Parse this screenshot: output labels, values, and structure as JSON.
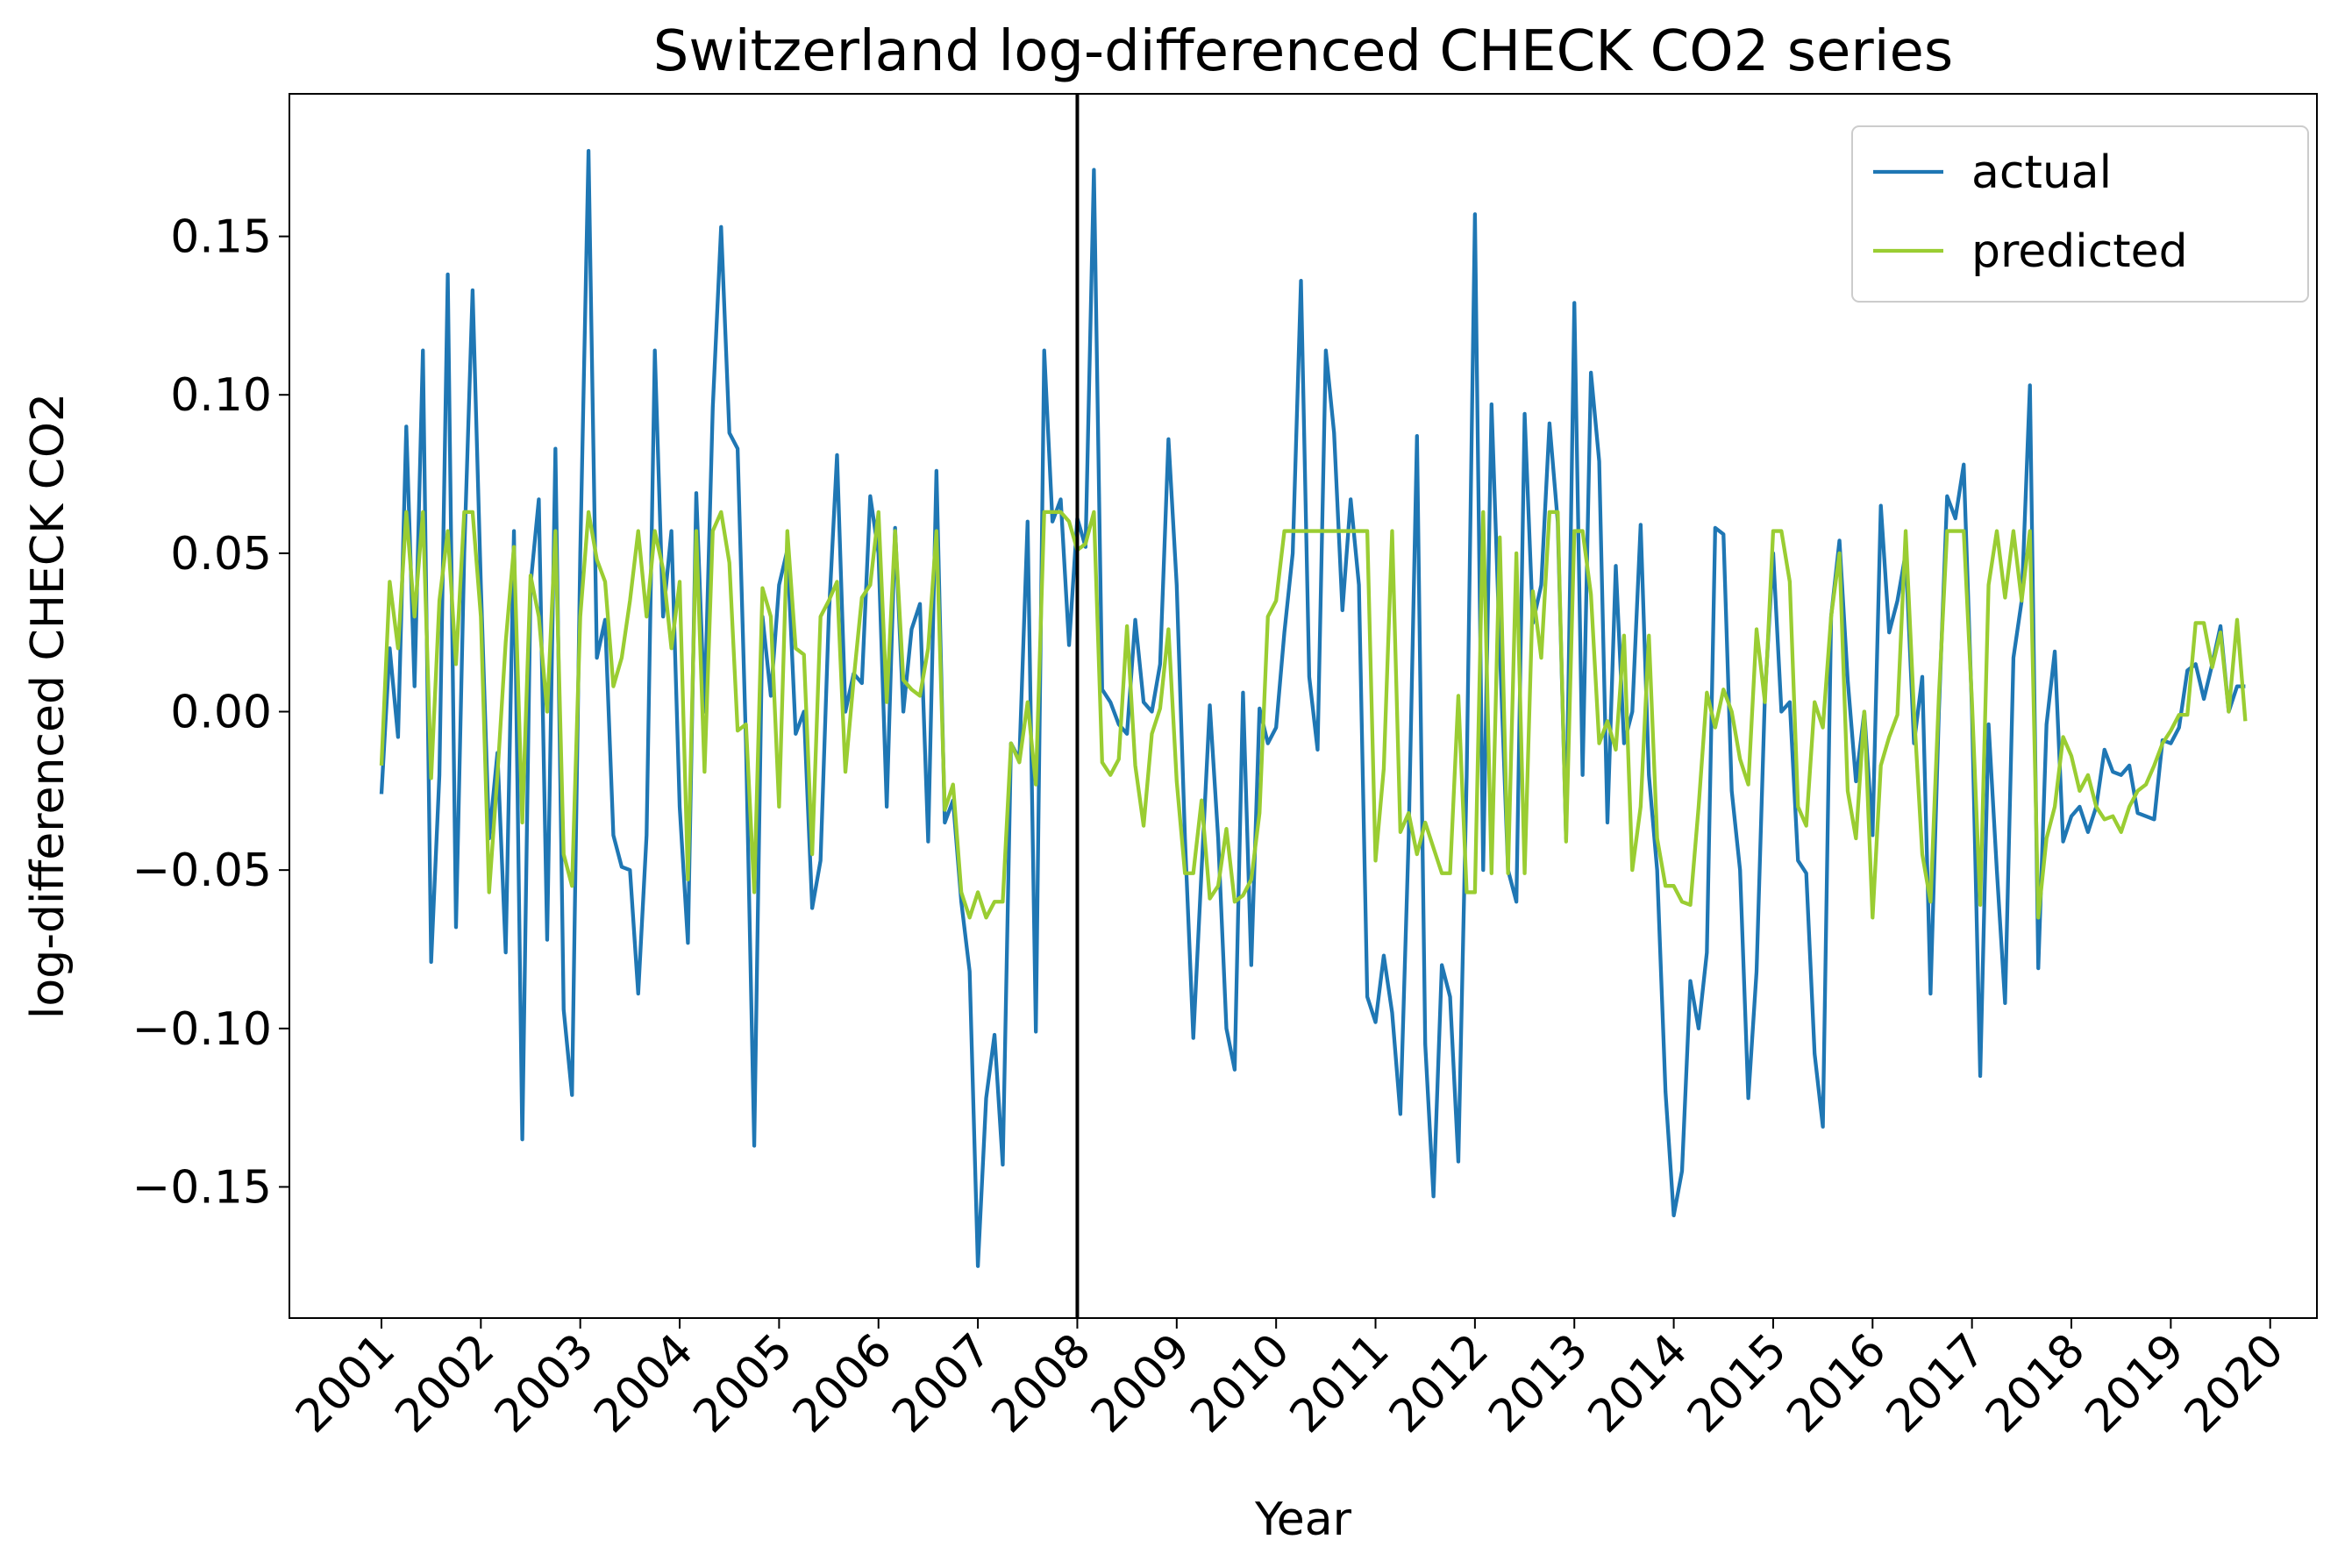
{
  "chart_data": {
    "type": "line",
    "title": "Switzerland log-differenced CHECK CO2 series",
    "xlabel": "Year",
    "ylabel": "log-differenced CHECK CO2",
    "x": [
      2001,
      2001.083,
      2001.167,
      2001.25,
      2001.333,
      2001.417,
      2001.5,
      2001.583,
      2001.667,
      2001.75,
      2001.833,
      2001.917,
      2002,
      2002.083,
      2002.167,
      2002.25,
      2002.333,
      2002.417,
      2002.5,
      2002.583,
      2002.667,
      2002.75,
      2002.833,
      2002.917,
      2003,
      2003.083,
      2003.167,
      2003.25,
      2003.333,
      2003.417,
      2003.5,
      2003.583,
      2003.667,
      2003.75,
      2003.833,
      2003.917,
      2004,
      2004.083,
      2004.167,
      2004.25,
      2004.333,
      2004.417,
      2004.5,
      2004.583,
      2004.667,
      2004.75,
      2004.833,
      2004.917,
      2005,
      2005.083,
      2005.167,
      2005.25,
      2005.333,
      2005.417,
      2005.5,
      2005.583,
      2005.667,
      2005.75,
      2005.833,
      2005.917,
      2006,
      2006.083,
      2006.167,
      2006.25,
      2006.333,
      2006.417,
      2006.5,
      2006.583,
      2006.667,
      2006.75,
      2006.833,
      2006.917,
      2007,
      2007.083,
      2007.167,
      2007.25,
      2007.333,
      2007.417,
      2007.5,
      2007.583,
      2007.667,
      2007.75,
      2007.833,
      2007.917,
      2008,
      2008.083,
      2008.167,
      2008.25,
      2008.333,
      2008.417,
      2008.5,
      2008.583,
      2008.667,
      2008.75,
      2008.833,
      2008.917,
      2009,
      2009.083,
      2009.167,
      2009.25,
      2009.333,
      2009.417,
      2009.5,
      2009.583,
      2009.667,
      2009.75,
      2009.833,
      2009.917,
      2010,
      2010.083,
      2010.167,
      2010.25,
      2010.333,
      2010.417,
      2010.5,
      2010.583,
      2010.667,
      2010.75,
      2010.833,
      2010.917,
      2011,
      2011.083,
      2011.167,
      2011.25,
      2011.333,
      2011.417,
      2011.5,
      2011.583,
      2011.667,
      2011.75,
      2011.833,
      2011.917,
      2012,
      2012.083,
      2012.167,
      2012.25,
      2012.333,
      2012.417,
      2012.5,
      2012.583,
      2012.667,
      2012.75,
      2012.833,
      2012.917,
      2013,
      2013.083,
      2013.167,
      2013.25,
      2013.333,
      2013.417,
      2013.5,
      2013.583,
      2013.667,
      2013.75,
      2013.833,
      2013.917,
      2014,
      2014.083,
      2014.167,
      2014.25,
      2014.333,
      2014.417,
      2014.5,
      2014.583,
      2014.667,
      2014.75,
      2014.833,
      2014.917,
      2015,
      2015.083,
      2015.167,
      2015.25,
      2015.333,
      2015.417,
      2015.5,
      2015.583,
      2015.667,
      2015.75,
      2015.833,
      2015.917,
      2016,
      2016.083,
      2016.167,
      2016.25,
      2016.333,
      2016.417,
      2016.5,
      2016.583,
      2016.667,
      2016.75,
      2016.833,
      2016.917,
      2017,
      2017.083,
      2017.167,
      2017.25,
      2017.333,
      2017.417,
      2017.5,
      2017.583,
      2017.667,
      2017.75,
      2017.833,
      2017.917,
      2018,
      2018.083,
      2018.167,
      2018.25,
      2018.333,
      2018.417,
      2018.5,
      2018.583,
      2018.667,
      2018.75,
      2018.833,
      2018.917,
      2019,
      2019.083,
      2019.167,
      2019.25,
      2019.333,
      2019.417,
      2019.5,
      2019.583,
      2019.667,
      2019.75
    ],
    "series": [
      {
        "name": "actual",
        "color": "#1f77b4",
        "values": [
          -0.026,
          0.02,
          -0.008,
          0.09,
          0.008,
          0.114,
          -0.079,
          -0.02,
          0.138,
          -0.068,
          0.05,
          0.133,
          0.04,
          -0.04,
          -0.013,
          -0.076,
          0.057,
          -0.135,
          0.04,
          0.067,
          -0.072,
          0.083,
          -0.094,
          -0.121,
          0.05,
          0.177,
          0.017,
          0.029,
          -0.039,
          -0.049,
          -0.05,
          -0.089,
          -0.039,
          0.114,
          0.03,
          0.057,
          -0.03,
          -0.073,
          0.069,
          0.0,
          0.096,
          0.153,
          0.088,
          0.083,
          -0.01,
          -0.137,
          0.03,
          0.005,
          0.04,
          0.051,
          -0.007,
          0.0,
          -0.062,
          -0.047,
          0.03,
          0.081,
          0.0,
          0.012,
          0.009,
          0.068,
          0.05,
          -0.03,
          0.058,
          0.0,
          0.026,
          0.034,
          -0.041,
          0.076,
          -0.035,
          -0.028,
          -0.06,
          -0.082,
          -0.175,
          -0.122,
          -0.102,
          -0.143,
          -0.01,
          -0.015,
          0.06,
          -0.101,
          0.114,
          0.06,
          0.067,
          0.021,
          0.061,
          0.052,
          0.171,
          0.007,
          0.003,
          -0.004,
          -0.007,
          0.029,
          0.003,
          0.0,
          0.015,
          0.086,
          0.04,
          -0.04,
          -0.103,
          -0.05,
          0.002,
          -0.04,
          -0.1,
          -0.113,
          0.006,
          -0.08,
          0.001,
          -0.01,
          -0.005,
          0.025,
          0.05,
          0.136,
          0.011,
          -0.012,
          0.114,
          0.088,
          0.032,
          0.067,
          0.04,
          -0.09,
          -0.098,
          -0.077,
          -0.095,
          -0.127,
          -0.04,
          0.087,
          -0.105,
          -0.153,
          -0.08,
          -0.09,
          -0.142,
          -0.02,
          0.157,
          -0.05,
          0.097,
          0.02,
          -0.05,
          -0.06,
          0.094,
          0.028,
          0.04,
          0.091,
          0.06,
          -0.04,
          0.129,
          -0.02,
          0.107,
          0.079,
          -0.035,
          0.046,
          -0.01,
          0.0,
          0.059,
          -0.02,
          -0.05,
          -0.12,
          -0.159,
          -0.145,
          -0.085,
          -0.1,
          -0.076,
          0.058,
          0.056,
          -0.025,
          -0.05,
          -0.122,
          -0.082,
          0.005,
          0.05,
          0.0,
          0.003,
          -0.047,
          -0.051,
          -0.108,
          -0.131,
          0.03,
          0.054,
          0.01,
          -0.022,
          0.0,
          -0.039,
          0.065,
          0.025,
          0.035,
          0.05,
          -0.01,
          0.011,
          -0.089,
          0.0,
          0.068,
          0.061,
          0.078,
          0.0,
          -0.115,
          -0.004,
          -0.05,
          -0.092,
          0.017,
          0.035,
          0.103,
          -0.081,
          -0.004,
          0.019,
          -0.041,
          -0.033,
          -0.03,
          -0.038,
          -0.03,
          -0.012,
          -0.019,
          -0.02,
          -0.017,
          -0.032,
          -0.033,
          -0.034,
          -0.009,
          -0.01,
          -0.005,
          0.013,
          0.015,
          0.004,
          0.015,
          0.027,
          0.0,
          0.008,
          0.008
        ]
      },
      {
        "name": "predicted",
        "color": "#9acd32",
        "values": [
          -0.017,
          0.041,
          0.02,
          0.063,
          0.03,
          0.063,
          -0.021,
          0.035,
          0.057,
          0.015,
          0.063,
          0.063,
          0.03,
          -0.057,
          -0.02,
          0.022,
          0.052,
          -0.035,
          0.043,
          0.03,
          0.0,
          0.057,
          -0.045,
          -0.055,
          0.03,
          0.063,
          0.048,
          0.041,
          0.008,
          0.017,
          0.035,
          0.057,
          0.03,
          0.057,
          0.045,
          0.02,
          0.041,
          -0.053,
          0.057,
          -0.019,
          0.057,
          0.063,
          0.047,
          -0.006,
          -0.004,
          -0.057,
          0.039,
          0.03,
          -0.03,
          0.057,
          0.02,
          0.018,
          -0.045,
          0.03,
          0.035,
          0.041,
          -0.019,
          0.01,
          0.036,
          0.04,
          0.063,
          0.003,
          0.057,
          0.01,
          0.007,
          0.005,
          0.02,
          0.057,
          -0.031,
          -0.023,
          -0.057,
          -0.065,
          -0.057,
          -0.065,
          -0.06,
          -0.06,
          -0.01,
          -0.016,
          0.003,
          -0.023,
          0.063,
          0.063,
          0.063,
          0.06,
          0.051,
          0.053,
          0.063,
          -0.016,
          -0.02,
          -0.015,
          0.027,
          -0.017,
          -0.036,
          -0.007,
          0.001,
          0.026,
          -0.022,
          -0.051,
          -0.051,
          -0.028,
          -0.059,
          -0.055,
          -0.037,
          -0.06,
          -0.058,
          -0.053,
          -0.032,
          0.03,
          0.035,
          0.057,
          0.057,
          0.057,
          0.057,
          0.057,
          0.057,
          0.057,
          0.057,
          0.057,
          0.057,
          0.057,
          -0.047,
          -0.018,
          0.057,
          -0.038,
          -0.032,
          -0.045,
          -0.035,
          -0.043,
          -0.051,
          -0.051,
          0.005,
          -0.057,
          -0.057,
          0.063,
          -0.051,
          0.055,
          -0.051,
          0.05,
          -0.051,
          0.038,
          0.017,
          0.063,
          0.063,
          -0.041,
          0.057,
          0.057,
          0.037,
          -0.01,
          -0.003,
          -0.012,
          0.024,
          -0.05,
          -0.03,
          0.024,
          -0.04,
          -0.055,
          -0.055,
          -0.06,
          -0.061,
          -0.03,
          0.006,
          -0.005,
          0.007,
          0.0,
          -0.015,
          -0.023,
          0.026,
          0.003,
          0.057,
          0.057,
          0.041,
          -0.03,
          -0.036,
          0.003,
          -0.005,
          0.03,
          0.05,
          -0.025,
          -0.04,
          0.0,
          -0.065,
          -0.017,
          -0.008,
          -0.001,
          0.057,
          0.0,
          -0.045,
          -0.06,
          0.005,
          0.057,
          0.057,
          0.057,
          0.003,
          -0.061,
          0.04,
          0.057,
          0.036,
          0.057,
          0.035,
          0.057,
          -0.065,
          -0.04,
          -0.03,
          -0.008,
          -0.014,
          -0.025,
          -0.02,
          -0.03,
          -0.034,
          -0.033,
          -0.038,
          -0.03,
          -0.025,
          -0.023,
          -0.017,
          -0.01,
          -0.006,
          -0.001,
          -0.001,
          0.028,
          0.028,
          0.014,
          0.025,
          0.0,
          0.029,
          -0.003
        ]
      }
    ],
    "vline_x": 2008,
    "vline_color": "#000000",
    "xlim": [
      2000.074,
      2020.47
    ],
    "xticks": [
      2001,
      2002,
      2003,
      2004,
      2005,
      2006,
      2007,
      2008,
      2009,
      2010,
      2011,
      2012,
      2013,
      2014,
      2015,
      2016,
      2017,
      2018,
      2019,
      2020
    ],
    "ylim": [
      -0.1914,
      0.195
    ],
    "yticks": [
      {
        "value": -0.15,
        "label": "−0.15"
      },
      {
        "value": -0.1,
        "label": "−0.10"
      },
      {
        "value": -0.05,
        "label": "−0.05"
      },
      {
        "value": 0,
        "label": "0.00"
      },
      0.05,
      {
        "value": 0.1,
        "label": "0.10"
      },
      0.15
    ],
    "legend": "upper right"
  }
}
